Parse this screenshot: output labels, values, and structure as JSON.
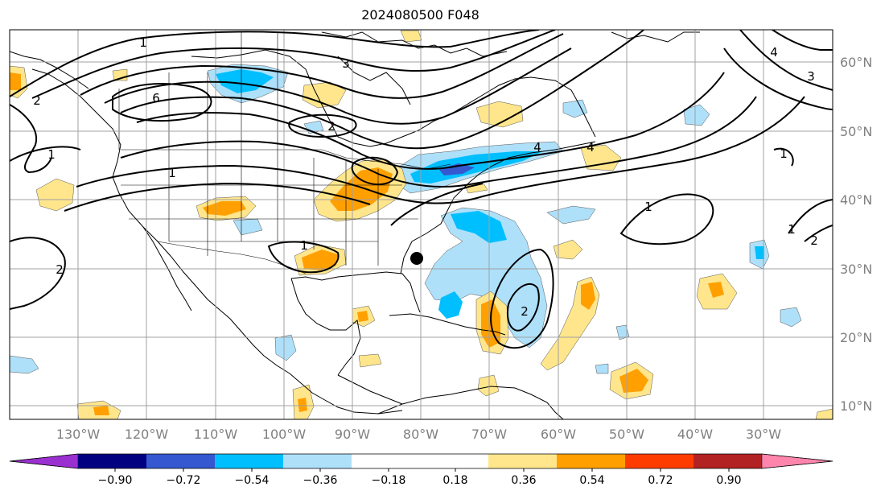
{
  "title": "2024080500 F048",
  "map": {
    "lon_labels": [
      "130°W",
      "120°W",
      "110°W",
      "100°W",
      "90°W",
      "80°W",
      "70°W",
      "60°W",
      "50°W",
      "40°W",
      "30°W"
    ],
    "lat_labels": [
      "60°N",
      "50°N",
      "40°N",
      "30°N",
      "20°N",
      "10°N"
    ],
    "lon_values": [
      -130,
      -120,
      -110,
      -100,
      -90,
      -80,
      -70,
      -60,
      -50,
      -40,
      -30
    ],
    "lat_values": [
      60,
      50,
      40,
      30,
      20,
      10
    ],
    "contour_labels": [
      "1",
      "6",
      "3",
      "2",
      "1",
      "1",
      "4",
      "3",
      "4",
      "1",
      "1",
      "2",
      "2",
      "2",
      "1",
      "2",
      "1",
      "4"
    ],
    "marker": {
      "lat": 31.7,
      "lon": -80.0,
      "name": "storm-center"
    }
  },
  "colorbar": {
    "tick_labels": [
      "−0.90",
      "−0.72",
      "−0.54",
      "−0.36",
      "−0.18",
      "0.18",
      "0.36",
      "0.54",
      "0.72",
      "0.90"
    ],
    "colors": [
      "#9b30d0",
      "#000080",
      "#3558d0",
      "#00bfff",
      "#aee0fa",
      "#ffffff",
      "#ffe68c",
      "#ffa000",
      "#ff3c00",
      "#b22222",
      "#ff85ad"
    ]
  },
  "colors": {
    "light_blue": "#aee0fa",
    "blue": "#00bfff",
    "mid_blue": "#3558d0",
    "yellow": "#ffe68c",
    "orange": "#ffa000",
    "axis_label": "#808080",
    "grid": "#a0a0a0"
  }
}
